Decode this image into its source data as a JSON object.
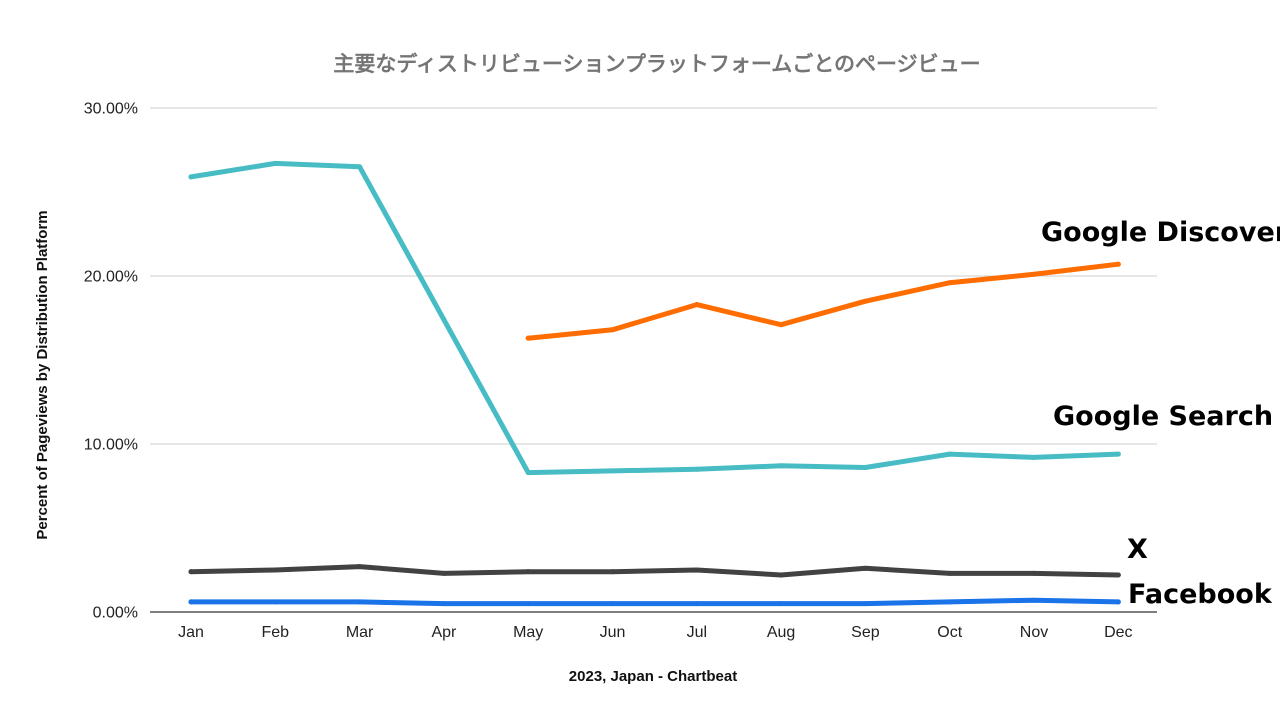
{
  "chart_data": {
    "type": "line",
    "title": "主要なディストリビューションプラットフォームごとのページビュー",
    "xlabel": "2023, Japan - Chartbeat",
    "ylabel": "Percent of Pageviews by Distribution Platform",
    "categories": [
      "Jan",
      "Feb",
      "Mar",
      "Apr",
      "May",
      "Jun",
      "Jul",
      "Aug",
      "Sep",
      "Oct",
      "Nov",
      "Dec"
    ],
    "ylim": [
      0,
      30
    ],
    "yticks": [
      {
        "value": 0,
        "label": "0.00%"
      },
      {
        "value": 10,
        "label": "10.00%"
      },
      {
        "value": 20,
        "label": "20.00%"
      },
      {
        "value": 30,
        "label": "30.00%"
      }
    ],
    "grid": true,
    "legend": "none (direct labels at right end of lines)",
    "series": [
      {
        "name": "Google Search",
        "color": "#47bcc5",
        "values": [
          25.9,
          26.7,
          26.5,
          17.4,
          8.3,
          8.4,
          8.5,
          8.7,
          8.6,
          9.4,
          9.2,
          9.4
        ]
      },
      {
        "name": "Google Discover",
        "color": "#ff6d01",
        "values": [
          null,
          null,
          null,
          null,
          16.3,
          16.8,
          18.3,
          17.1,
          18.5,
          19.6,
          20.1,
          20.7
        ]
      },
      {
        "name": "X",
        "color": "#424242",
        "values": [
          2.4,
          2.5,
          2.7,
          2.3,
          2.4,
          2.4,
          2.5,
          2.2,
          2.6,
          2.3,
          2.3,
          2.2
        ]
      },
      {
        "name": "Facebook",
        "color": "#1a73e8",
        "values": [
          0.6,
          0.6,
          0.6,
          0.5,
          0.5,
          0.5,
          0.5,
          0.5,
          0.5,
          0.6,
          0.7,
          0.6
        ]
      }
    ]
  }
}
